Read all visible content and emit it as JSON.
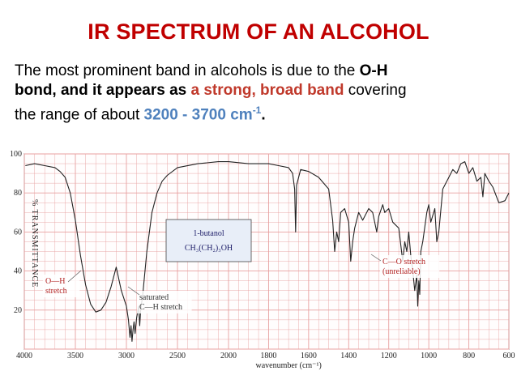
{
  "slide": {
    "title": "IR SPECTRUM OF AN ALCOHOL",
    "text": {
      "p1": "The most prominent band in alcohols is due to the ",
      "oh": "O-H",
      "p2": "bond, and it appears as ",
      "strong": "a strong, broad band",
      "p3": " covering",
      "p4": "the range of about ",
      "range": "3200 - 3700 cm",
      "sup": "-1",
      "end": "."
    }
  },
  "colors": {
    "title": "#c00000",
    "emphasis_red": "#c0392b",
    "emphasis_blue": "#4f81bd",
    "grid": "#e8a0a0",
    "trace": "#222222"
  },
  "chart_data": {
    "type": "line",
    "xlabel": "wavenumber (cm⁻¹)",
    "ylabel": "% TRANSMITTANCE",
    "xlim": [
      4000,
      600
    ],
    "ylim": [
      0,
      100
    ],
    "grid": true,
    "x_ticks": [
      "4000",
      "3500",
      "3000",
      "2500",
      "2000",
      "1800",
      "1600",
      "1400",
      "1200",
      "1000",
      "800",
      "600"
    ],
    "y_ticks": [
      "100",
      "80",
      "60",
      "40",
      "20"
    ],
    "compound_box": [
      "1-butanol",
      "CH₃(CH₂)₃OH"
    ],
    "annotations": [
      {
        "lines": [
          "O—H",
          "stretch"
        ],
        "at": 3350
      },
      {
        "lines": [
          "saturated",
          "C—H stretch"
        ],
        "at": 2950
      },
      {
        "lines": [
          "C—O stretch",
          "(unreliable)"
        ],
        "at": 1070
      }
    ],
    "series": [
      {
        "x": [
          3990,
          3900,
          3800,
          3700,
          3650,
          3600,
          3550,
          3500,
          3450,
          3400,
          3350,
          3300,
          3250,
          3200,
          3150,
          3100,
          3050,
          3000,
          2980,
          2965,
          2955,
          2945,
          2935,
          2925,
          2915,
          2900,
          2880,
          2870,
          2860,
          2840,
          2800,
          2750,
          2700,
          2650,
          2600,
          2500,
          2300,
          2100,
          2000,
          1900,
          1800,
          1750,
          1700,
          1680,
          1670,
          1665,
          1660,
          1640,
          1600,
          1550,
          1500,
          1480,
          1470,
          1460,
          1450,
          1440,
          1420,
          1400,
          1390,
          1380,
          1370,
          1350,
          1330,
          1300,
          1280,
          1260,
          1250,
          1230,
          1220,
          1200,
          1180,
          1150,
          1130,
          1120,
          1110,
          1100,
          1090,
          1080,
          1070,
          1060,
          1055,
          1050,
          1045,
          1040,
          1030,
          1010,
          1000,
          990,
          970,
          960,
          950,
          930,
          900,
          880,
          860,
          840,
          820,
          800,
          780,
          760,
          740,
          730,
          720,
          700,
          680,
          650,
          620,
          600
        ],
        "y": [
          94,
          95,
          94,
          93,
          91,
          88,
          80,
          66,
          48,
          33,
          23,
          19,
          20,
          24,
          32,
          42,
          30,
          22,
          15,
          6,
          12,
          4,
          10,
          14,
          8,
          16,
          22,
          12,
          20,
          28,
          50,
          70,
          80,
          86,
          89,
          93,
          95,
          96,
          96,
          95,
          95,
          94,
          93,
          90,
          82,
          60,
          84,
          92,
          91,
          88,
          82,
          66,
          50,
          60,
          55,
          70,
          72,
          65,
          45,
          55,
          62,
          70,
          66,
          72,
          70,
          60,
          68,
          74,
          70,
          72,
          65,
          62,
          45,
          55,
          50,
          60,
          48,
          40,
          30,
          38,
          22,
          35,
          28,
          50,
          55,
          70,
          74,
          65,
          72,
          55,
          60,
          82,
          88,
          92,
          90,
          95,
          96,
          90,
          93,
          86,
          88,
          78,
          90,
          86,
          83,
          75,
          76,
          80
        ]
      }
    ]
  }
}
